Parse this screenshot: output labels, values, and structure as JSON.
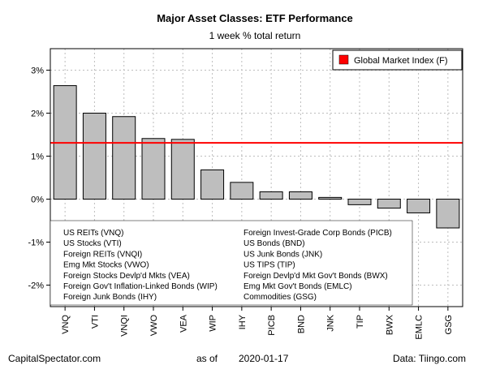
{
  "chart_data": {
    "type": "bar",
    "title": "Major Asset Classes: ETF Performance",
    "subtitle": "1 week % total return",
    "categories": [
      "VNQ",
      "VTI",
      "VNQI",
      "VWO",
      "VEA",
      "WIP",
      "IHY",
      "PICB",
      "BND",
      "JNK",
      "TIP",
      "BWX",
      "EMLC",
      "GSG"
    ],
    "values": [
      2.64,
      2.0,
      1.92,
      1.41,
      1.39,
      0.68,
      0.39,
      0.17,
      0.17,
      0.04,
      -0.13,
      -0.21,
      -0.32,
      -0.67
    ],
    "ylim": [
      -2.5,
      3.5
    ],
    "yticks": [
      -2,
      -1,
      0,
      1,
      2,
      3
    ],
    "ytick_labels": [
      "-2%",
      "-1%",
      "0%",
      "1%",
      "2%",
      "3%"
    ],
    "reference_line": {
      "label": "Global Market Index (F)",
      "value": 1.31,
      "color": "#ff0000"
    },
    "bar_color": "#bebebe",
    "grid": true,
    "legend_position": "top-right",
    "key_left": [
      "US REITs (VNQ)",
      "US Stocks (VTI)",
      "Foreign REITs (VNQI)",
      "Emg Mkt Stocks (VWO)",
      "Foreign Stocks Devlp'd Mkts (VEA)",
      "Foreign Gov't Inflation-Linked Bonds (WIP)",
      "Foreign Junk Bonds (IHY)"
    ],
    "key_right": [
      "Foreign Invest-Grade Corp Bonds (PICB)",
      "US Bonds (BND)",
      "US Junk Bonds (JNK)",
      "US TIPS (TIP)",
      "Foreign Devlp'd Mkt Gov't Bonds (BWX)",
      "Emg Mkt Gov't Bonds (EMLC)",
      "Commodities (GSG)"
    ]
  },
  "footer": {
    "left": "CapitalSpectator.com",
    "center_prefix": "as of",
    "date": "2020-01-17",
    "right": "Data: Tiingo.com"
  }
}
